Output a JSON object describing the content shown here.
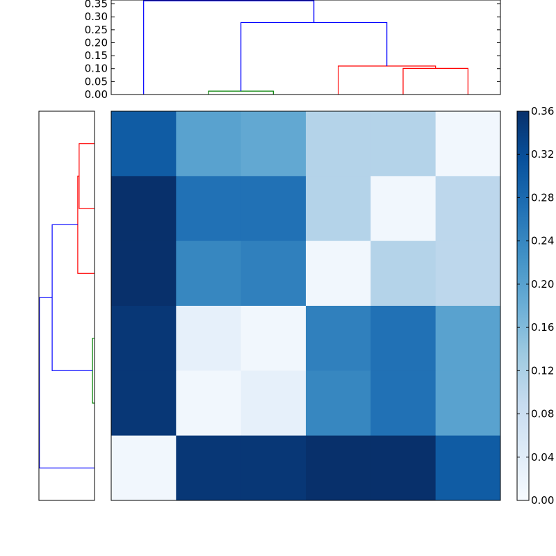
{
  "chart_data": [
    {
      "type": "heatmap",
      "colormap": "Blues",
      "colorbar": {
        "range": [
          0,
          0.36
        ],
        "ticks": [
          0.0,
          0.04,
          0.08,
          0.12,
          0.16,
          0.2,
          0.24,
          0.28,
          0.32,
          0.36
        ],
        "tick_labels": [
          "0.00",
          "0.04",
          "0.08",
          "0.12",
          "0.16",
          "0.20",
          "0.24",
          "0.28",
          "0.32",
          "0.36"
        ]
      },
      "values": [
        [
          0.3,
          0.2,
          0.19,
          0.11,
          0.11,
          0.01
        ],
        [
          0.36,
          0.27,
          0.27,
          0.11,
          0.01,
          0.1
        ],
        [
          0.36,
          0.24,
          0.25,
          0.01,
          0.11,
          0.1
        ],
        [
          0.35,
          0.03,
          0.01,
          0.25,
          0.27,
          0.2
        ],
        [
          0.35,
          0.01,
          0.03,
          0.24,
          0.27,
          0.2
        ],
        [
          0.01,
          0.35,
          0.35,
          0.36,
          0.36,
          0.3
        ]
      ],
      "grid": false,
      "title": "",
      "xlabel": "",
      "ylabel": ""
    },
    {
      "type": "dendrogram",
      "orientation": "top",
      "ylim": [
        0,
        0.365
      ],
      "ticks": [
        0.0,
        0.05,
        0.1,
        0.15,
        0.2,
        0.25,
        0.3,
        0.35
      ],
      "tick_labels": [
        "0.00",
        "0.05",
        "0.10",
        "0.15",
        "0.20",
        "0.25",
        "0.30",
        "0.35"
      ],
      "merges": [
        {
          "left": [
            1,
            0
          ],
          "right": [
            2,
            0
          ],
          "height": 0.013,
          "color": "#008000"
        },
        {
          "left": [
            4,
            0
          ],
          "right": [
            5,
            0
          ],
          "height": 0.101,
          "color": "#ff0000"
        },
        {
          "left": [
            3,
            0
          ],
          "right": [
            4.5,
            0.101
          ],
          "height": 0.11,
          "color": "#ff0000"
        },
        {
          "left": [
            1.5,
            0.013
          ],
          "right": [
            3.75,
            0.11
          ],
          "height": 0.278,
          "color": "#0000ff"
        },
        {
          "left": [
            0,
            0
          ],
          "right": [
            2.625,
            0.278
          ],
          "height": 0.362,
          "color": "#0000ff"
        }
      ]
    },
    {
      "type": "dendrogram",
      "orientation": "left",
      "xlim": [
        0.365,
        0
      ],
      "merges": [
        {
          "left": [
            1,
            0
          ],
          "right": [
            2,
            0
          ],
          "height": 0.013,
          "color": "#008000"
        },
        {
          "left": [
            4,
            0
          ],
          "right": [
            5,
            0
          ],
          "height": 0.101,
          "color": "#ff0000"
        },
        {
          "left": [
            3,
            0
          ],
          "right": [
            4.5,
            0.101
          ],
          "height": 0.11,
          "color": "#ff0000"
        },
        {
          "left": [
            1.5,
            0.013
          ],
          "right": [
            3.75,
            0.11
          ],
          "height": 0.278,
          "color": "#0000ff"
        },
        {
          "left": [
            0,
            0
          ],
          "right": [
            2.625,
            0.278
          ],
          "height": 0.362,
          "color": "#0000ff"
        }
      ]
    }
  ]
}
